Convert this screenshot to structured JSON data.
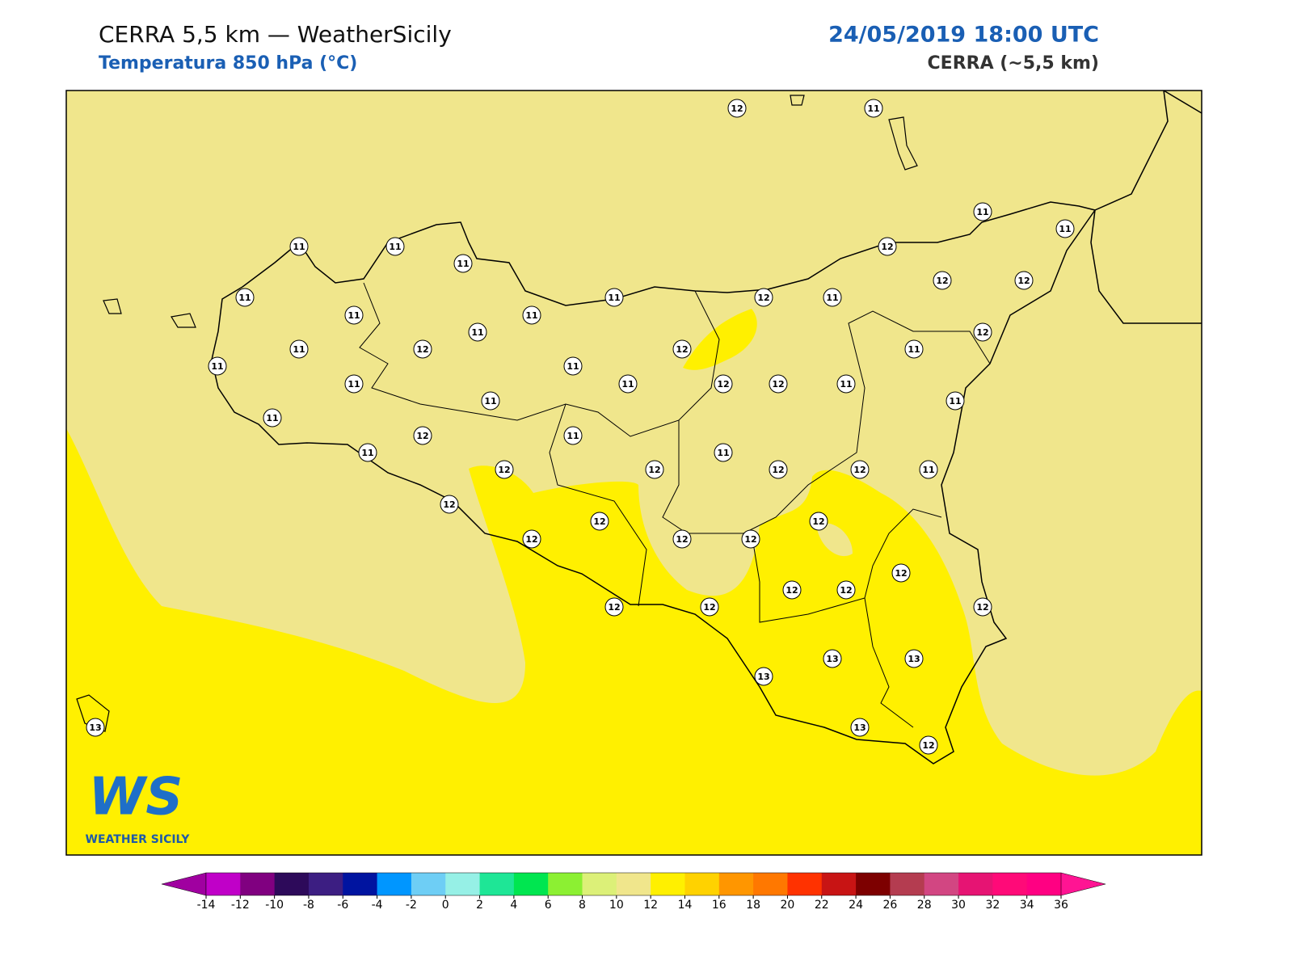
{
  "header": {
    "title": "CERRA 5,5 km — WeatherSicily",
    "subtitle": "Temperatura 850 hPa (°C)",
    "date": "24/05/2019 18:00 UTC",
    "model": "CERRA (~5,5 km)"
  },
  "logo": {
    "mark": "WS",
    "text": "WEATHER SICILY"
  },
  "stations": [
    12,
    11,
    11,
    11,
    11,
    11,
    11,
    12,
    12,
    12,
    11,
    11,
    12,
    11,
    11,
    11,
    11,
    12,
    11,
    12,
    12,
    11,
    11,
    11,
    11,
    11,
    12,
    12,
    11,
    11,
    11,
    11,
    12,
    11,
    11,
    11,
    12,
    12,
    12,
    12,
    11,
    12,
    12,
    12,
    12,
    12,
    12,
    12,
    12,
    12,
    12,
    12,
    12,
    13,
    13,
    13,
    13,
    13,
    12
  ],
  "colorbar": {
    "ticks": [
      -14,
      -12,
      -10,
      -8,
      -6,
      -4,
      -2,
      0,
      2,
      4,
      6,
      8,
      10,
      12,
      14,
      16,
      18,
      20,
      22,
      24,
      26,
      28,
      30,
      32,
      34,
      36
    ],
    "colors": [
      "#c000c8",
      "#800080",
      "#2d0a5a",
      "#3c1e82",
      "#0014a0",
      "#0096ff",
      "#6ecef5",
      "#96f0e6",
      "#1ee696",
      "#00e650",
      "#8cf032",
      "#dcf078",
      "#f0e68c",
      "#fff000",
      "#ffd200",
      "#ff9600",
      "#ff7800",
      "#ff3200",
      "#c81414",
      "#7d0000",
      "#b43c50",
      "#d24682",
      "#e61473",
      "#ff0a78",
      "#ff0082"
    ],
    "under": "#a000a0",
    "over": "#ff1493"
  }
}
